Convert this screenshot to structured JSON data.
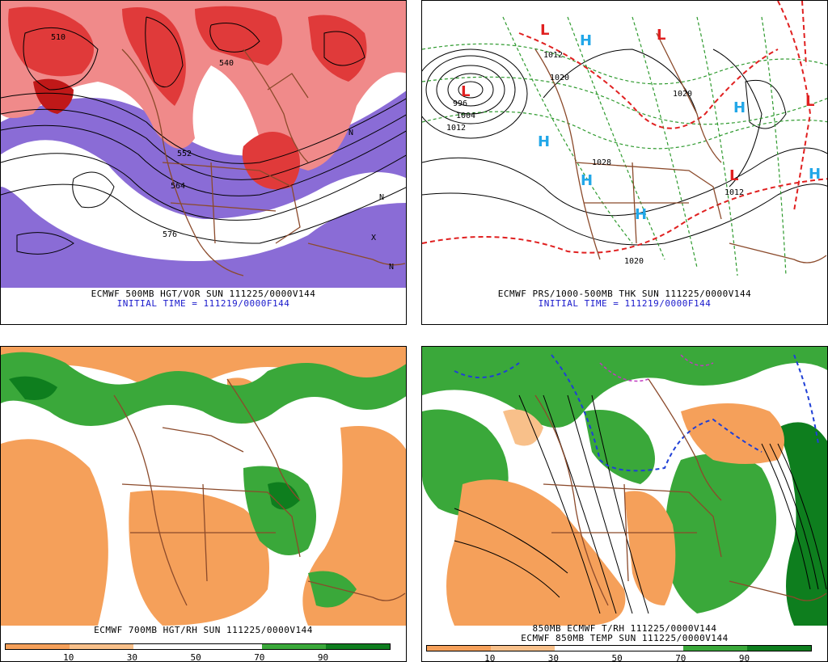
{
  "panels": [
    {
      "id": "p1",
      "caption": "ECMWF 500MB HGT/VOR SUN 111225/0000V144",
      "initial": "INITIAL TIME = 111219/0000F144",
      "labels": [
        "552",
        "564",
        "576",
        "510",
        "540",
        "N",
        "N",
        "X",
        "N"
      ]
    },
    {
      "id": "p2",
      "caption": "ECMWF PRS/1000-500MB THK SUN 111225/0000V144",
      "initial": "INITIAL TIME = 111219/0000F144",
      "labels": [
        "1012",
        "1020",
        "1028",
        "1020",
        "996",
        "1004",
        "1012",
        "1012",
        "1020"
      ],
      "high_letter": "H",
      "low_letter": "L",
      "colors": {
        "high": "#22a7e8",
        "low": "#e02020",
        "thickness": "#e02020"
      }
    },
    {
      "id": "p3",
      "caption": "ECMWF 700MB HGT/RH SUN 111225/0000V144",
      "colorbar_ticks": [
        "10",
        "30",
        "50",
        "70",
        "90"
      ]
    },
    {
      "id": "p4",
      "caption_line1": "850MB ECMWF T/RH 111225/0000V144",
      "caption_line2": "ECMWF 850MB TEMP SUN 111225/0000V144",
      "colorbar_ticks": [
        "10",
        "30",
        "50",
        "70",
        "90"
      ]
    }
  ],
  "colors": {
    "vort_red": "#e03a3a",
    "vort_pink": "#f08a8a",
    "vort_purple": "#8a6cd6",
    "rh_orange": "#f5a05a",
    "rh_light_orange": "#f8c08a",
    "rh_green": "#3aa83a",
    "rh_dark_green": "#0e7e1e",
    "border_brown": "#8b4a2b"
  }
}
